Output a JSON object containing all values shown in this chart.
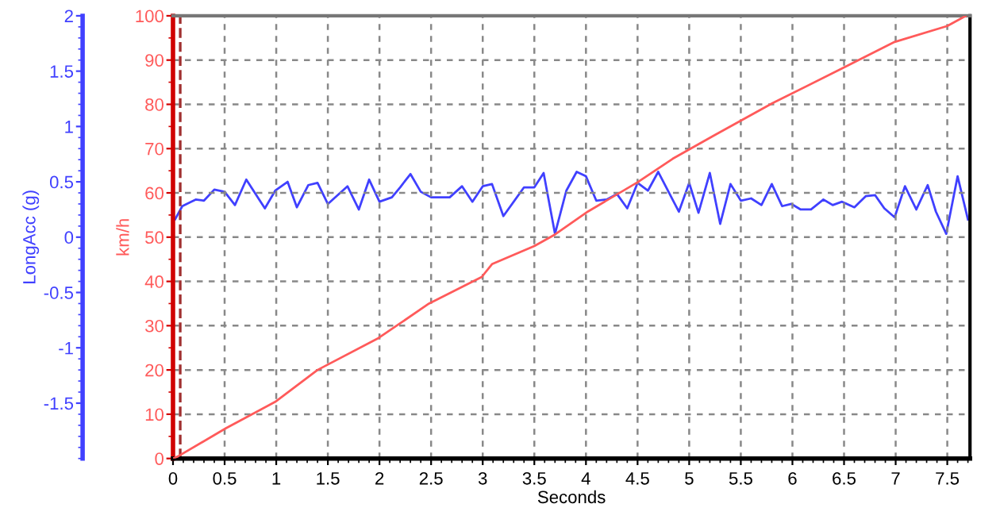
{
  "chart_data": {
    "type": "line",
    "xlabel": "Seconds",
    "ylabel": "km/h",
    "y2label": "LongAcc (g)",
    "xlim": [
      0,
      7.72
    ],
    "xticks": [
      0,
      0.5,
      1,
      1.5,
      2,
      2.5,
      3,
      3.5,
      4,
      4.5,
      5,
      5.5,
      6,
      6.5,
      7,
      7.5
    ],
    "ylim": [
      0,
      100
    ],
    "yticks": [
      0,
      10,
      20,
      30,
      40,
      50,
      60,
      70,
      80,
      90,
      100
    ],
    "y2lim": [
      -2,
      2
    ],
    "y2ticks": [
      -1.5,
      -1,
      -0.5,
      0,
      0.5,
      1,
      1.5,
      2
    ],
    "grid": true,
    "legend": false,
    "line_style": "solid",
    "marker": "none",
    "ref_lines": [
      {
        "axis": "x",
        "value": 0.07,
        "color": "#a03030",
        "line_style": "dashed"
      }
    ],
    "series": [
      {
        "color": "#ff5a5a",
        "x": [
          0,
          0.05,
          0.51,
          0.99,
          1.4,
          1.99,
          2.48,
          2.99,
          3.09,
          3.5,
          3.7,
          4.02,
          4.5,
          4.84,
          5.25,
          5.81,
          6.48,
          6.99,
          7.5,
          7.68
        ],
        "values": [
          0,
          0.5,
          6.8,
          12.8,
          20,
          27.2,
          35,
          41,
          43.9,
          48,
          50.6,
          55.8,
          62.4,
          67.7,
          73.1,
          80.3,
          88.1,
          94.1,
          97.7,
          100
        ]
      },
      {
        "color": "#4040ff",
        "axis": "y2",
        "x": [
          0.02,
          0.09,
          0.22,
          0.3,
          0.4,
          0.5,
          0.6,
          0.71,
          0.89,
          0.99,
          1.11,
          1.2,
          1.31,
          1.4,
          1.5,
          1.69,
          1.8,
          1.9,
          2.0,
          2.12,
          2.2,
          2.3,
          2.4,
          2.5,
          2.68,
          2.8,
          2.9,
          3.0,
          3.09,
          3.2,
          3.4,
          3.5,
          3.59,
          3.7,
          3.81,
          3.91,
          4.0,
          4.1,
          4.2,
          4.3,
          4.4,
          4.5,
          4.6,
          4.7,
          4.8,
          4.9,
          5.0,
          5.09,
          5.2,
          5.3,
          5.4,
          5.5,
          5.6,
          5.7,
          5.8,
          5.9,
          5.99,
          6.08,
          6.18,
          6.3,
          6.39,
          6.48,
          6.6,
          6.71,
          6.8,
          6.89,
          6.99,
          7.09,
          7.2,
          7.31,
          7.39,
          7.49,
          7.6,
          7.7
        ],
        "values": [
          0.16,
          0.28,
          0.34,
          0.33,
          0.43,
          0.41,
          0.29,
          0.52,
          0.26,
          0.42,
          0.5,
          0.27,
          0.47,
          0.49,
          0.3,
          0.46,
          0.25,
          0.52,
          0.32,
          0.36,
          0.45,
          0.57,
          0.41,
          0.36,
          0.36,
          0.46,
          0.32,
          0.46,
          0.48,
          0.19,
          0.45,
          0.45,
          0.58,
          0.03,
          0.42,
          0.59,
          0.55,
          0.33,
          0.34,
          0.39,
          0.26,
          0.49,
          0.42,
          0.59,
          0.41,
          0.23,
          0.49,
          0.22,
          0.58,
          0.12,
          0.48,
          0.33,
          0.35,
          0.29,
          0.48,
          0.28,
          0.3,
          0.25,
          0.25,
          0.34,
          0.29,
          0.32,
          0.27,
          0.37,
          0.38,
          0.26,
          0.18,
          0.46,
          0.25,
          0.47,
          0.23,
          0.03,
          0.55,
          0.16
        ]
      }
    ]
  }
}
